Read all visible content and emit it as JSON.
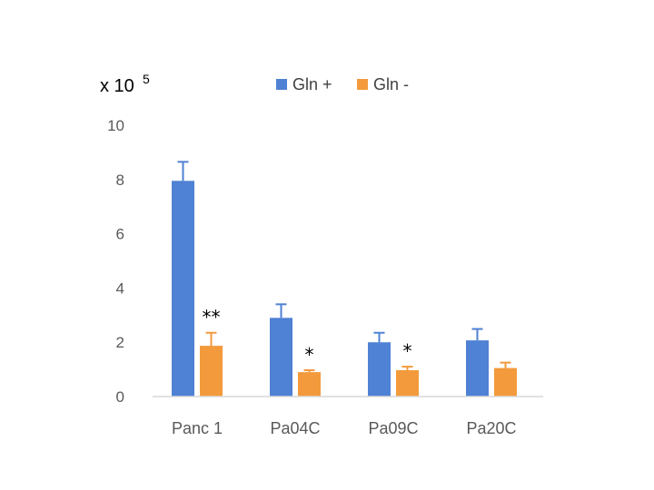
{
  "chart_data": {
    "type": "bar",
    "multiplier": {
      "base": "x 10",
      "exponent": "5"
    },
    "categories": [
      "Panc 1",
      "Pa04C",
      "Pa09C",
      "Pa20C"
    ],
    "ylim": [
      0,
      10
    ],
    "yticks": [
      0,
      2,
      4,
      6,
      8,
      10
    ],
    "grid": false,
    "legend_position": "top",
    "series": [
      {
        "name": "Gln +",
        "color": "#4f81d4",
        "values": [
          7.95,
          2.9,
          2.0,
          2.07
        ],
        "errors": [
          0.7,
          0.5,
          0.35,
          0.42
        ]
      },
      {
        "name": "Gln -",
        "color": "#f39a3c",
        "values": [
          1.87,
          0.9,
          0.97,
          1.05
        ],
        "errors": [
          0.48,
          0.07,
          0.13,
          0.2
        ]
      }
    ],
    "annotations": [
      "**",
      "*",
      "*",
      ""
    ]
  }
}
